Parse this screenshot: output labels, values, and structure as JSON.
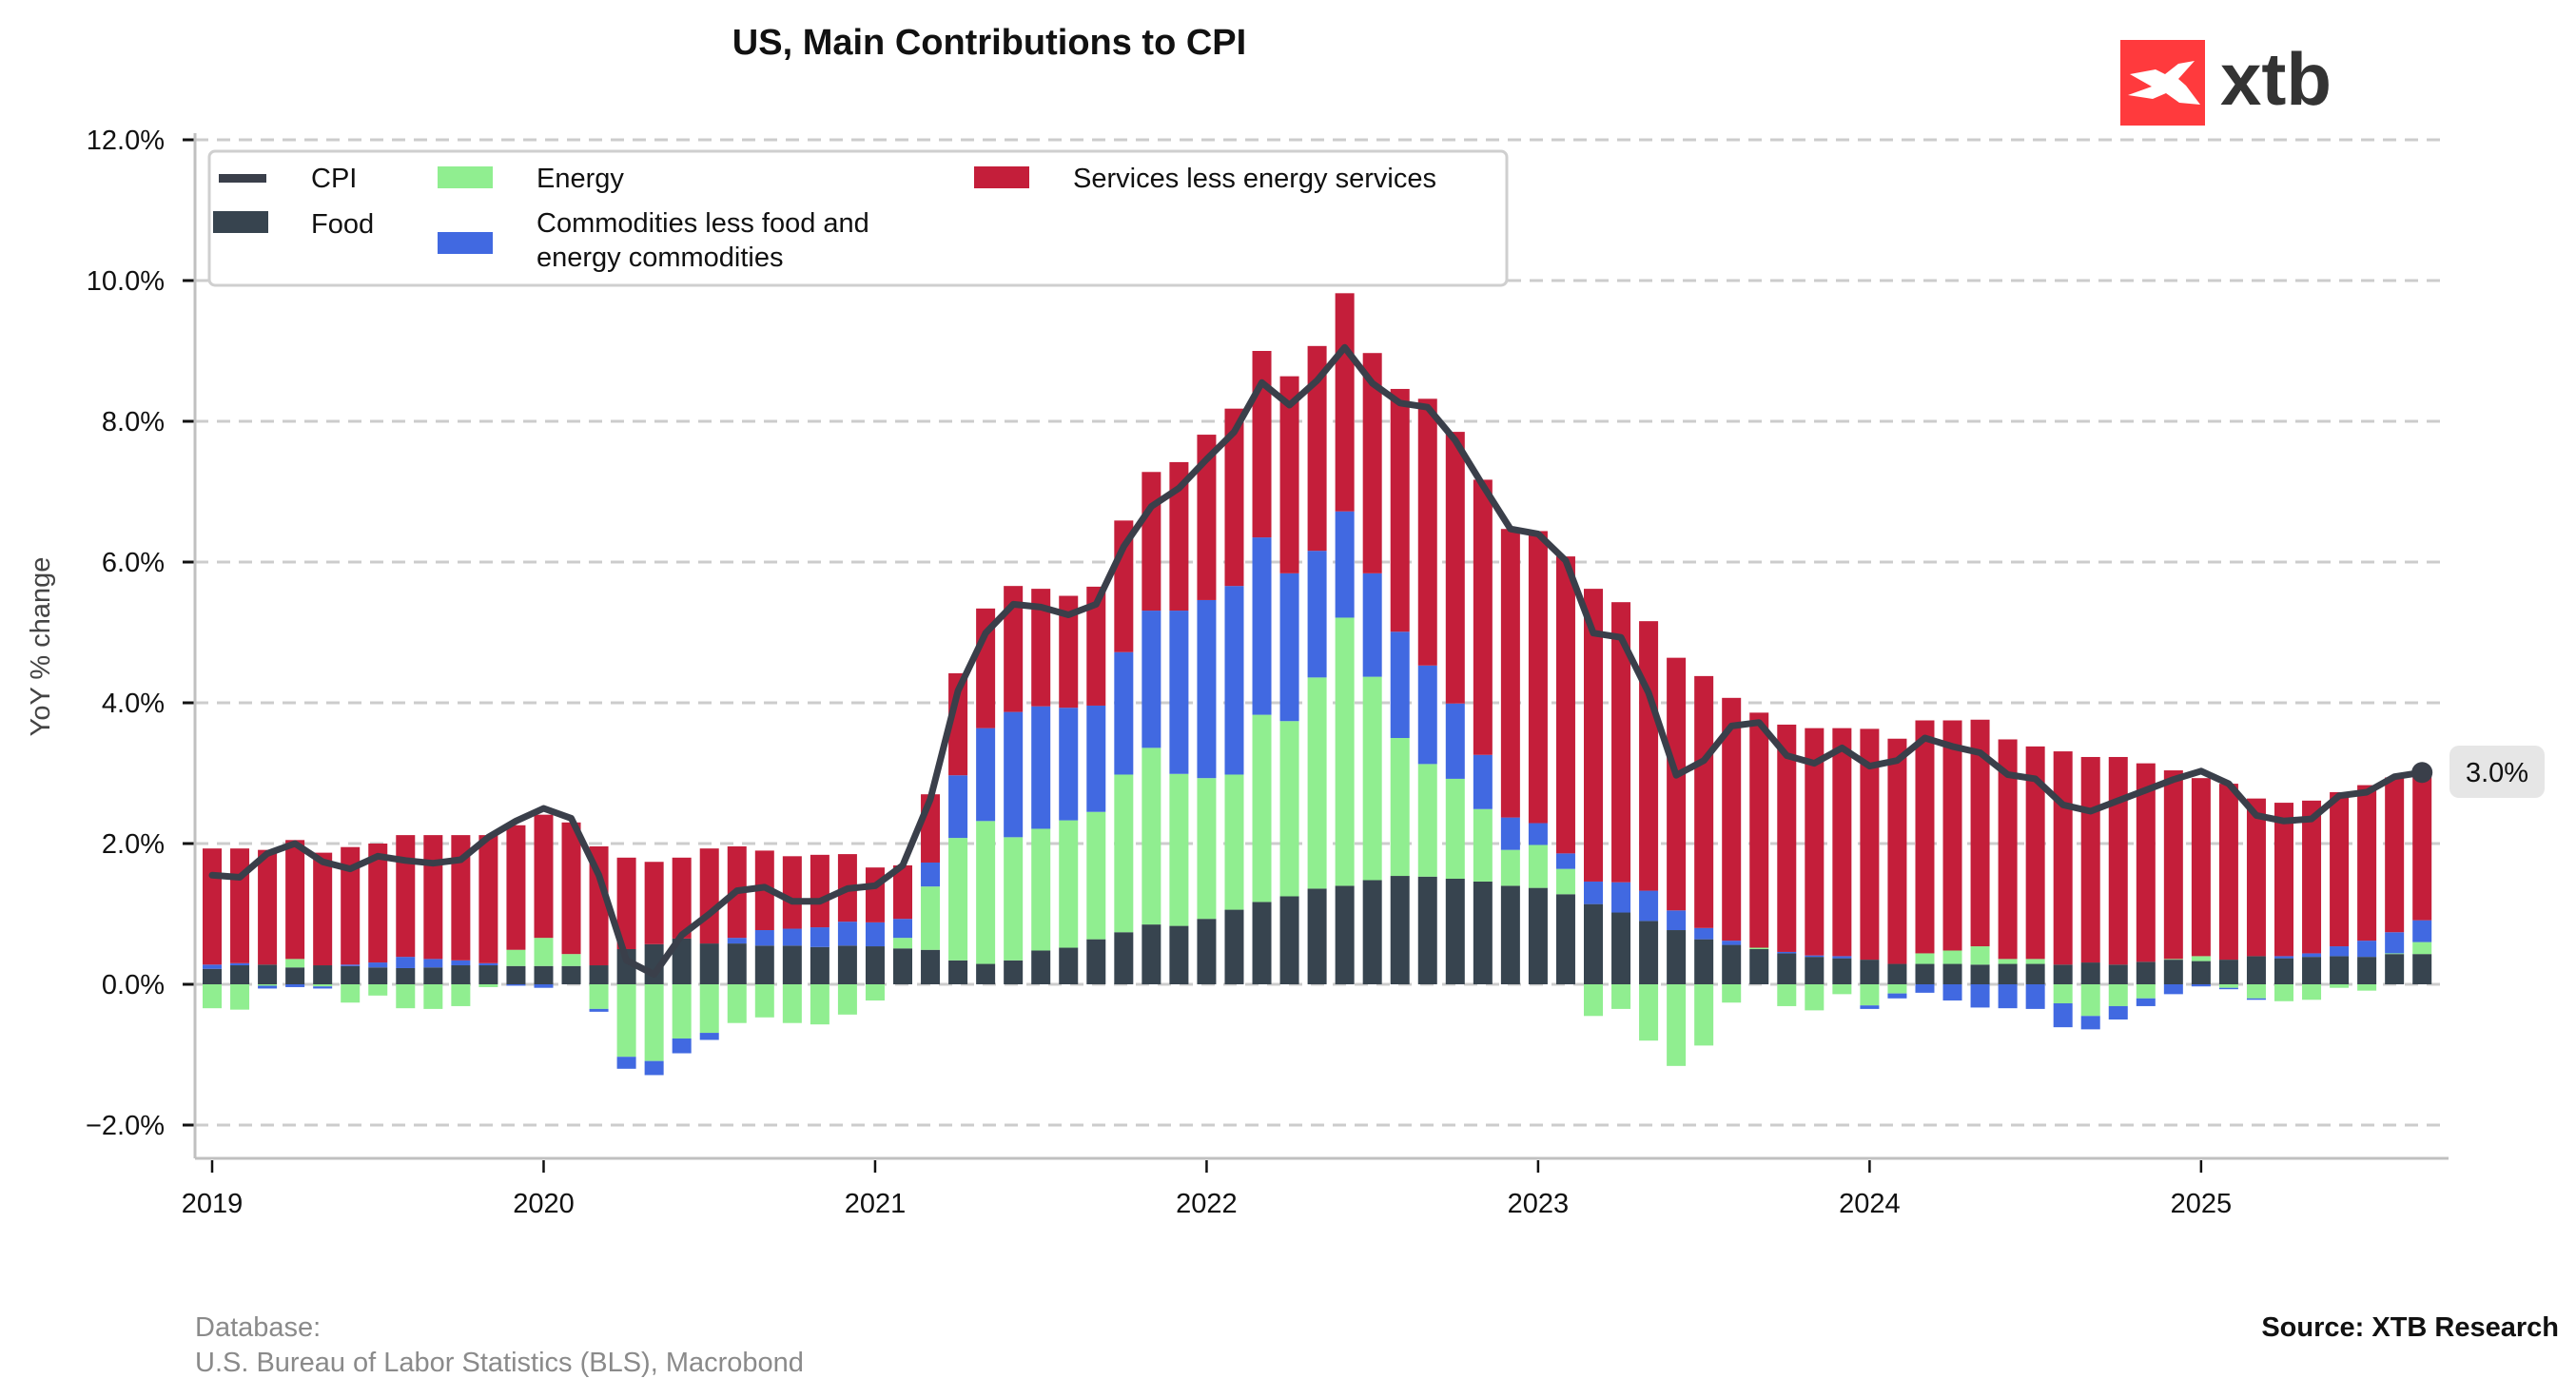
{
  "chart_data": {
    "type": "bar",
    "stacked": true,
    "title": "US, Main Contributions to CPI",
    "xlabel": "",
    "ylabel": "YoY % change",
    "ylim": [
      -2.4,
      12.0
    ],
    "yticks": [
      -2.0,
      0.0,
      2.0,
      4.0,
      6.0,
      8.0,
      10.0,
      12.0
    ],
    "ytick_labels": [
      "−2.0%",
      "0.0%",
      "2.0%",
      "4.0%",
      "6.0%",
      "8.0%",
      "10.0%",
      "12.0%"
    ],
    "xticks": [
      "2019",
      "2020",
      "2021",
      "2022",
      "2023",
      "2024",
      "2025"
    ],
    "grid": "horizontal dashed",
    "legend_position": "top-left",
    "start_month": "2019-01",
    "frequency": "monthly",
    "categories": [
      "2019-01",
      "2019-02",
      "2019-03",
      "2019-04",
      "2019-05",
      "2019-06",
      "2019-07",
      "2019-08",
      "2019-09",
      "2019-10",
      "2019-11",
      "2019-12",
      "2020-01",
      "2020-02",
      "2020-03",
      "2020-04",
      "2020-05",
      "2020-06",
      "2020-07",
      "2020-08",
      "2020-09",
      "2020-10",
      "2020-11",
      "2020-12",
      "2021-01",
      "2021-02",
      "2021-03",
      "2021-04",
      "2021-05",
      "2021-06",
      "2021-07",
      "2021-08",
      "2021-09",
      "2021-10",
      "2021-11",
      "2021-12",
      "2022-01",
      "2022-02",
      "2022-03",
      "2022-04",
      "2022-05",
      "2022-06",
      "2022-07",
      "2022-08",
      "2022-09",
      "2022-10",
      "2022-11",
      "2022-12",
      "2023-01",
      "2023-02",
      "2023-03",
      "2023-04",
      "2023-05",
      "2023-06",
      "2023-07",
      "2023-08",
      "2023-09",
      "2023-10",
      "2023-11",
      "2023-12",
      "2024-01",
      "2024-02",
      "2024-03",
      "2024-04",
      "2024-05",
      "2024-06",
      "2024-07",
      "2024-08",
      "2024-09",
      "2024-10",
      "2024-11",
      "2024-12",
      "2025-01",
      "2025-02",
      "2025-03",
      "2025-04",
      "2025-05",
      "2025-06",
      "2025-07",
      "2025-08",
      "2025-09"
    ],
    "series": [
      {
        "name": "Food",
        "kind": "bar",
        "color": "#37444f",
        "values": [
          0.22,
          0.27,
          0.28,
          0.24,
          0.27,
          0.26,
          0.24,
          0.23,
          0.24,
          0.27,
          0.27,
          0.26,
          0.26,
          0.26,
          0.27,
          0.5,
          0.57,
          0.65,
          0.58,
          0.58,
          0.55,
          0.55,
          0.53,
          0.55,
          0.54,
          0.51,
          0.49,
          0.34,
          0.29,
          0.34,
          0.48,
          0.52,
          0.64,
          0.74,
          0.85,
          0.83,
          0.93,
          1.06,
          1.17,
          1.25,
          1.36,
          1.4,
          1.48,
          1.54,
          1.53,
          1.5,
          1.46,
          1.4,
          1.37,
          1.28,
          1.14,
          1.02,
          0.9,
          0.77,
          0.64,
          0.56,
          0.5,
          0.44,
          0.39,
          0.37,
          0.35,
          0.29,
          0.29,
          0.29,
          0.28,
          0.29,
          0.29,
          0.28,
          0.31,
          0.28,
          0.32,
          0.35,
          0.33,
          0.35,
          0.4,
          0.37,
          0.39,
          0.4,
          0.39,
          0.43,
          0.43
        ]
      },
      {
        "name": "Energy",
        "kind": "bar",
        "color": "#90ee90",
        "values": [
          -0.34,
          -0.36,
          -0.02,
          0.12,
          -0.03,
          -0.26,
          -0.16,
          -0.34,
          -0.35,
          -0.31,
          -0.04,
          0.23,
          0.4,
          0.17,
          -0.35,
          -1.03,
          -1.09,
          -0.77,
          -0.69,
          -0.55,
          -0.47,
          -0.55,
          -0.57,
          -0.43,
          -0.23,
          0.15,
          0.9,
          1.74,
          2.03,
          1.75,
          1.73,
          1.81,
          1.81,
          2.24,
          2.51,
          2.16,
          2.0,
          1.92,
          2.66,
          2.49,
          3.0,
          3.81,
          2.89,
          1.96,
          1.6,
          1.42,
          1.03,
          0.51,
          0.61,
          0.36,
          -0.45,
          -0.35,
          -0.8,
          -1.16,
          -0.87,
          -0.26,
          0.02,
          -0.31,
          -0.37,
          -0.14,
          -0.3,
          -0.13,
          0.15,
          0.19,
          0.26,
          0.07,
          0.07,
          -0.27,
          -0.45,
          -0.31,
          -0.2,
          0.01,
          0.07,
          -0.05,
          -0.2,
          -0.24,
          -0.22,
          -0.05,
          -0.09,
          0.01,
          0.17
        ]
      },
      {
        "name": "Commodities less food and energy commodities",
        "kind": "bar",
        "color": "#4169e1",
        "values": [
          0.06,
          0.03,
          -0.04,
          -0.04,
          -0.03,
          0.02,
          0.07,
          0.16,
          0.12,
          0.07,
          0.03,
          -0.02,
          -0.05,
          0.0,
          -0.04,
          -0.17,
          -0.2,
          -0.21,
          -0.1,
          0.08,
          0.22,
          0.24,
          0.28,
          0.34,
          0.34,
          0.27,
          0.34,
          0.89,
          1.32,
          1.78,
          1.74,
          1.6,
          1.51,
          1.74,
          1.95,
          2.32,
          2.53,
          2.68,
          2.52,
          2.1,
          1.8,
          1.51,
          1.47,
          1.51,
          1.4,
          1.07,
          0.77,
          0.46,
          0.31,
          0.22,
          0.32,
          0.43,
          0.43,
          0.28,
          0.16,
          0.06,
          0.0,
          0.02,
          0.02,
          0.03,
          -0.05,
          -0.07,
          -0.12,
          -0.23,
          -0.33,
          -0.34,
          -0.35,
          -0.34,
          -0.19,
          -0.19,
          -0.11,
          -0.14,
          -0.03,
          -0.02,
          -0.02,
          0.03,
          0.05,
          0.14,
          0.23,
          0.3,
          0.31
        ]
      },
      {
        "name": "Services less energy services",
        "kind": "bar",
        "color": "#c41e3a",
        "values": [
          1.65,
          1.63,
          1.63,
          1.69,
          1.6,
          1.67,
          1.69,
          1.73,
          1.76,
          1.78,
          1.82,
          1.77,
          1.75,
          1.87,
          1.69,
          1.3,
          1.17,
          1.15,
          1.35,
          1.3,
          1.13,
          1.03,
          1.03,
          0.96,
          0.78,
          0.76,
          0.97,
          1.45,
          1.7,
          1.79,
          1.67,
          1.59,
          1.69,
          1.87,
          1.97,
          2.11,
          2.35,
          2.52,
          2.65,
          2.8,
          2.91,
          3.1,
          3.13,
          3.45,
          3.79,
          3.86,
          3.91,
          4.1,
          4.15,
          4.22,
          4.16,
          3.98,
          3.83,
          3.59,
          3.58,
          3.45,
          3.34,
          3.23,
          3.23,
          3.24,
          3.28,
          3.2,
          3.31,
          3.27,
          3.22,
          3.12,
          3.02,
          3.03,
          2.92,
          2.95,
          2.82,
          2.68,
          2.53,
          2.5,
          2.24,
          2.18,
          2.17,
          2.19,
          2.21,
          2.2,
          2.09
        ]
      },
      {
        "name": "CPI",
        "kind": "line",
        "color": "#3a3f4a",
        "values": [
          1.55,
          1.52,
          1.86,
          2.0,
          1.74,
          1.64,
          1.82,
          1.76,
          1.72,
          1.77,
          2.09,
          2.32,
          2.5,
          2.36,
          1.55,
          0.34,
          0.14,
          0.7,
          1.0,
          1.33,
          1.38,
          1.18,
          1.18,
          1.36,
          1.4,
          1.69,
          2.63,
          4.17,
          4.99,
          5.4,
          5.36,
          5.25,
          5.4,
          6.22,
          6.79,
          7.05,
          7.46,
          7.85,
          8.55,
          8.23,
          8.58,
          9.05,
          8.54,
          8.26,
          8.2,
          7.73,
          7.09,
          6.47,
          6.4,
          6.02,
          4.99,
          4.93,
          4.14,
          2.97,
          3.18,
          3.67,
          3.72,
          3.25,
          3.14,
          3.36,
          3.1,
          3.18,
          3.5,
          3.38,
          3.29,
          2.98,
          2.92,
          2.55,
          2.46,
          2.61,
          2.76,
          2.91,
          3.03,
          2.85,
          2.4,
          2.32,
          2.35,
          2.68,
          2.73,
          2.95,
          3.01
        ]
      }
    ],
    "annotations": [
      {
        "text": "3.0%",
        "target": "last CPI value",
        "value": 3.0
      }
    ]
  },
  "header": {
    "title": "US, Main Contributions to CPI",
    "logo_text": "xtb",
    "logo_color": "#ff3a3d"
  },
  "legend": {
    "items": [
      {
        "label": "CPI",
        "kind": "line",
        "color": "#3a3f4a"
      },
      {
        "label": "Food",
        "kind": "patch",
        "color": "#37444f"
      },
      {
        "label": "Energy",
        "kind": "patch",
        "color": "#90ee90"
      },
      {
        "label_line1": "Commodities less food and",
        "label_line2": "energy commodities",
        "kind": "patch",
        "color": "#4169e1"
      },
      {
        "label": "Services less energy services",
        "kind": "patch",
        "color": "#c41e3a"
      }
    ]
  },
  "axes": {
    "ylabel": "YoY % change"
  },
  "footer": {
    "database_label": "Database:",
    "database_source": "U.S. Bureau of Labor Statistics (BLS), Macrobond",
    "source": "Source: XTB Research"
  },
  "badge": {
    "last_value_label": "3.0%"
  }
}
